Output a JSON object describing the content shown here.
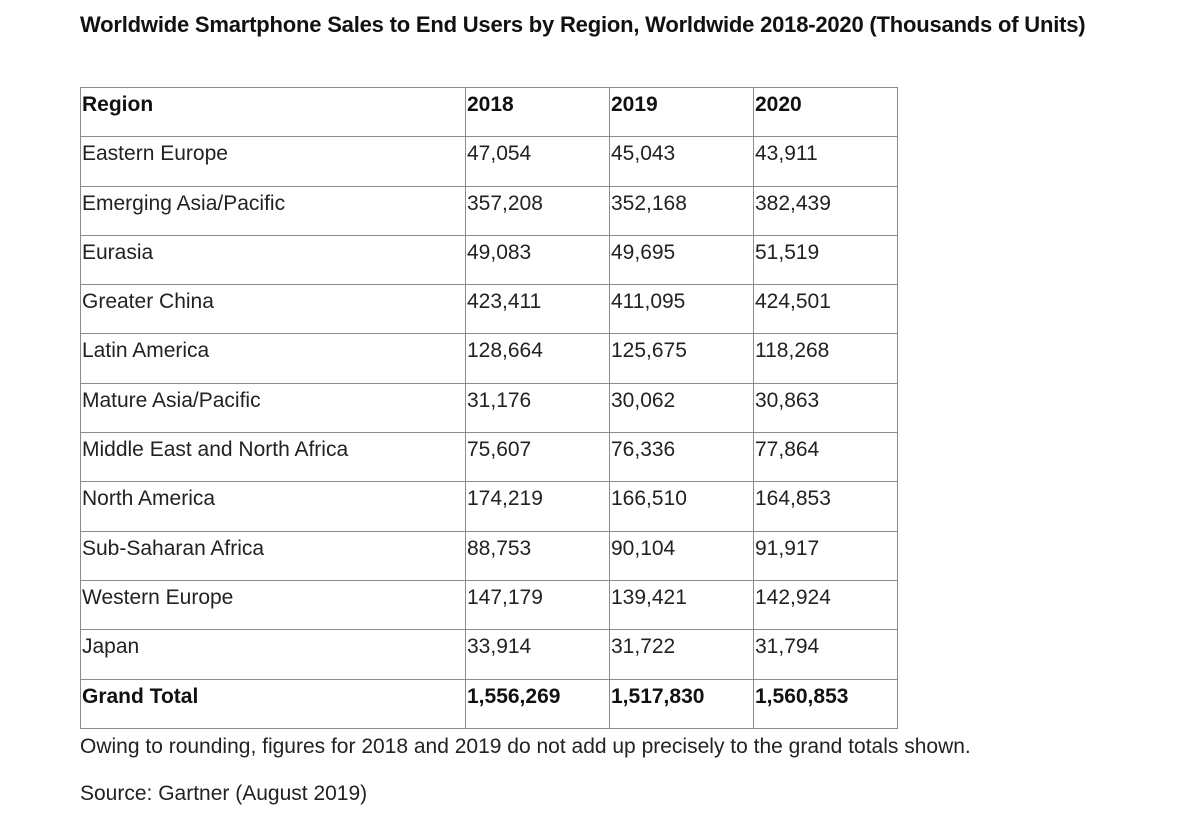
{
  "title": "Worldwide Smartphone Sales to End Users by Region, Worldwide 2018-2020 (Thousands of Units)",
  "table": {
    "headers": [
      "Region",
      "2018",
      "2019",
      "2020"
    ],
    "rows": [
      [
        "Eastern Europe",
        "47,054",
        "45,043",
        "43,911"
      ],
      [
        "Emerging Asia/Pacific",
        "357,208",
        "352,168",
        "382,439"
      ],
      [
        "Eurasia",
        "49,083",
        "49,695",
        "51,519"
      ],
      [
        "Greater China",
        "423,411",
        "411,095",
        "424,501"
      ],
      [
        "Latin America",
        "128,664",
        "125,675",
        "118,268"
      ],
      [
        "Mature Asia/Pacific",
        "31,176",
        "30,062",
        "30,863"
      ],
      [
        "Middle East and North Africa",
        "75,607",
        "76,336",
        "77,864"
      ],
      [
        "North America",
        "174,219",
        "166,510",
        "164,853"
      ],
      [
        "Sub-Saharan Africa",
        "88,753",
        "90,104",
        "91,917"
      ],
      [
        "Western Europe",
        "147,179",
        "139,421",
        "142,924"
      ],
      [
        "Japan",
        "33,914",
        "31,722",
        "31,794"
      ]
    ],
    "total": [
      "Grand Total",
      "1,556,269",
      "1,517,830",
      "1,560,853"
    ]
  },
  "note": "Owing to rounding, figures for 2018 and 2019 do not add up precisely to the grand totals shown.",
  "source": "Source: Gartner (August 2019)"
}
